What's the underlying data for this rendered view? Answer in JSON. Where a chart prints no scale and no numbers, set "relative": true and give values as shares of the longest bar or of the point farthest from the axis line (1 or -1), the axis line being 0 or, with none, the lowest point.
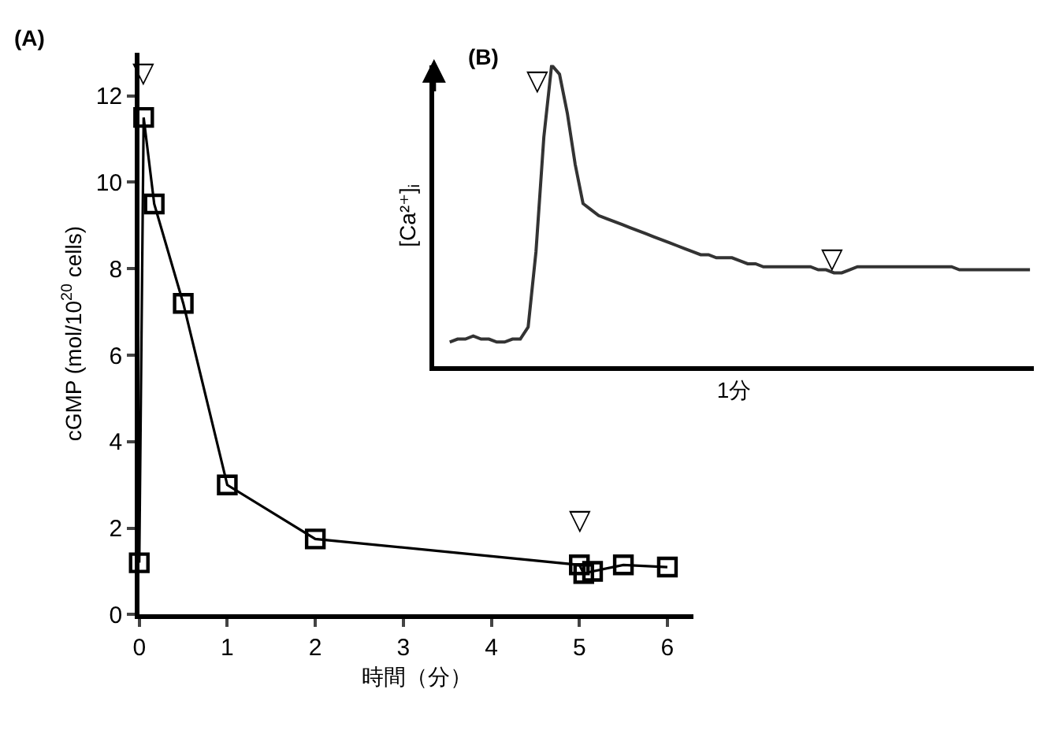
{
  "chart_data": [
    {
      "type": "line",
      "title": "(A)",
      "xlabel": "時間（分）",
      "ylabel": "cGMP (mol/10$^{20}$ cells)",
      "x": [
        0,
        0.05,
        0.17,
        0.5,
        1,
        2,
        5,
        5.05,
        5.15,
        5.5,
        6
      ],
      "series": [
        {
          "color": "#000000",
          "values": [
            1.2,
            11.5,
            9.5,
            7.2,
            3.0,
            1.75,
            1.15,
            0.95,
            1.0,
            1.15,
            1.1
          ]
        }
      ],
      "marker": "square",
      "line_style": "solid",
      "xlim": [
        0,
        6.3
      ],
      "xticks": [
        0,
        1,
        2,
        3,
        4,
        5,
        6
      ],
      "ylim": [
        0,
        13
      ],
      "yticks": [
        0,
        2,
        4,
        6,
        8,
        10,
        12
      ],
      "annotations": [
        {
          "text": "▽",
          "x": 0.05,
          "y": 11.5
        },
        {
          "text": "▽",
          "x": 5,
          "y": 1.15
        }
      ]
    },
    {
      "type": "line",
      "title": "(B)",
      "xlabel": "1分",
      "ylabel": "[Ca²⁺]$_{i}$",
      "relative": true,
      "categories": [
        null,
        null,
        null,
        null,
        null,
        null,
        null,
        null,
        null,
        null,
        null,
        null,
        null,
        null,
        null,
        null,
        null,
        null,
        null,
        null,
        null,
        null,
        null,
        null,
        null,
        null,
        null,
        null,
        null,
        null,
        null,
        null,
        null,
        null,
        null,
        null,
        null,
        null,
        null,
        null,
        null,
        null,
        null,
        null,
        null,
        null,
        null,
        null,
        null,
        null,
        null,
        null,
        null,
        null,
        null,
        null,
        null,
        null,
        null,
        null,
        null,
        null,
        null,
        null,
        null,
        null,
        null,
        null,
        null,
        null,
        null,
        null,
        null,
        null,
        null
      ],
      "series": [
        {
          "color": "#333333",
          "values": [
            0.08,
            0.09,
            0.09,
            0.1,
            0.09,
            0.09,
            0.08,
            0.08,
            0.09,
            0.09,
            0.13,
            0.38,
            0.76,
            1.0,
            0.97,
            0.84,
            0.67,
            0.54,
            0.52,
            0.5,
            0.49,
            0.48,
            0.47,
            0.46,
            0.45,
            0.44,
            0.43,
            0.42,
            0.41,
            0.4,
            0.39,
            0.38,
            0.37,
            0.37,
            0.36,
            0.36,
            0.36,
            0.35,
            0.34,
            0.34,
            0.33,
            0.33,
            0.33,
            0.33,
            0.33,
            0.33,
            0.33,
            0.32,
            0.32,
            0.31,
            0.31,
            0.32,
            0.33,
            0.33,
            0.33,
            0.33,
            0.33,
            0.33,
            0.33,
            0.33,
            0.33,
            0.33,
            0.33,
            0.33,
            0.33,
            0.32,
            0.32,
            0.32,
            0.32,
            0.32,
            0.32,
            0.32,
            0.32,
            0.32,
            0.32
          ]
        }
      ],
      "marker": "none",
      "line_style": "solid",
      "annotations": [
        "▽",
        "▽"
      ]
    }
  ]
}
